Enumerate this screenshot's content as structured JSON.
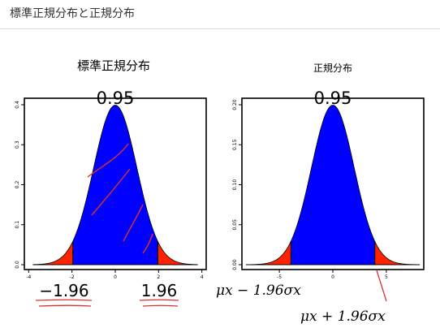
{
  "header": {
    "title": "標準正規分布と正規分布"
  },
  "left_panel": {
    "title": "標準正規分布",
    "prob": "0.95",
    "x_ticks": [
      "-4",
      "-2",
      "0",
      "2",
      "4"
    ],
    "y_ticks": [
      "0.0",
      "0.1",
      "0.2",
      "0.3",
      "0.4"
    ],
    "lower_label": "−1.96",
    "upper_label": "1.96"
  },
  "right_panel": {
    "title": "正規分布",
    "prob": "0.95",
    "x_ticks": [
      "-5",
      "0",
      "5"
    ],
    "y_ticks": [
      "0.00",
      "0.05",
      "0.10",
      "0.15",
      "0.20"
    ],
    "lower_label": "μx − 1.96σx",
    "upper_label": "μx + 1.96σx"
  },
  "colors": {
    "center_fill": "#0000ff",
    "tail_fill": "#ff2200",
    "annotation": "#e03030"
  },
  "chart_data": [
    {
      "type": "area",
      "title": "標準正規分布",
      "distribution": "normal",
      "mean": 0,
      "sd": 1,
      "xlim": [
        -4.2,
        4.2
      ],
      "ylim": [
        0,
        0.4
      ],
      "shaded_center": [
        -1.96,
        1.96
      ],
      "center_probability": 0.95
    },
    {
      "type": "area",
      "title": "正規分布",
      "distribution": "normal",
      "mean": 0,
      "sd": 2,
      "xlim": [
        -8.5,
        8.5
      ],
      "ylim": [
        0,
        0.2
      ],
      "shaded_center": [
        -3.92,
        3.92
      ],
      "center_probability": 0.95
    }
  ]
}
